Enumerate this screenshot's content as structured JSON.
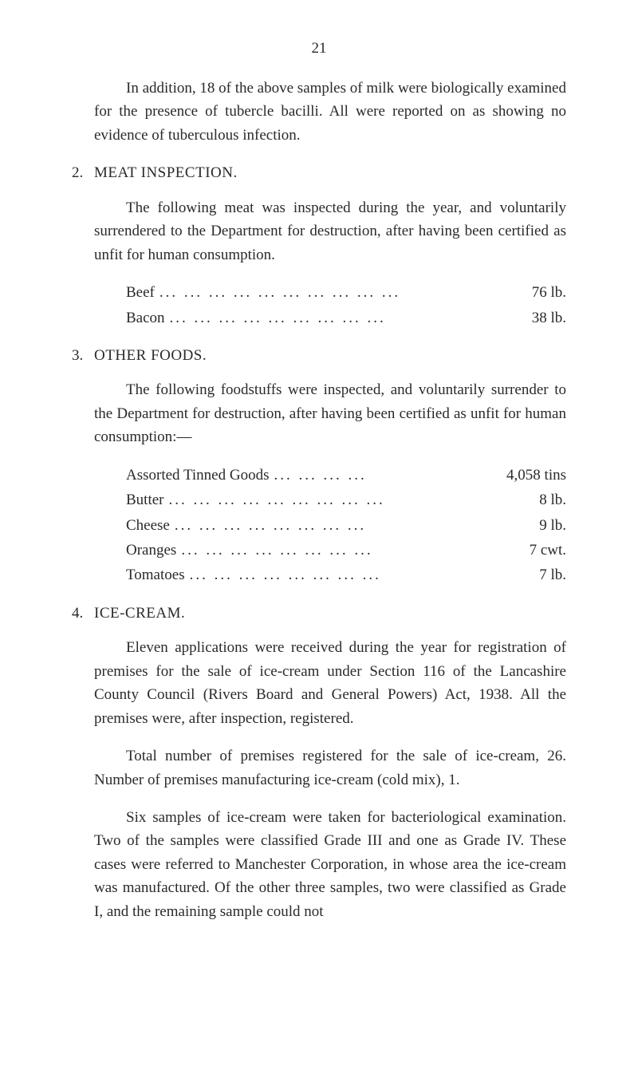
{
  "page_number": "21",
  "intro_paragraph": "In addition, 18 of the above samples of milk were biologically examined for the presence of tubercle bacilli. All were reported on as showing no evidence of tuberculous infection.",
  "section2": {
    "num": "2.",
    "title": "MEAT INSPECTION.",
    "paragraph": "The following meat was inspected during the year, and voluntarily surrendered to the Department for destruction, after having been certified as unfit for human consumption.",
    "items": [
      {
        "label": "Beef",
        "dots": "... ... ... ... ... ... ... ... ... ...",
        "value": "76 lb."
      },
      {
        "label": "Bacon",
        "dots": "... ... ... ... ... ... ... ... ...",
        "value": "38 lb."
      }
    ]
  },
  "section3": {
    "num": "3.",
    "title": "OTHER FOODS.",
    "paragraph": "The following foodstuffs were inspected, and voluntarily surrender to the Department for destruction, after having been certified as unfit for human consumption:—",
    "items": [
      {
        "label": "Assorted Tinned Goods",
        "dots": "... ... ... ...",
        "value": "4,058 tins"
      },
      {
        "label": "Butter",
        "dots": "... ... ... ... ... ... ... ... ...",
        "value": "8 lb."
      },
      {
        "label": "Cheese",
        "dots": "... ... ... ... ... ... ... ...",
        "value": "9 lb."
      },
      {
        "label": "Oranges",
        "dots": "... ... ... ... ... ... ... ...",
        "value": "7 cwt."
      },
      {
        "label": "Tomatoes",
        "dots": "... ... ... ... ... ... ... ...",
        "value": "7 lb."
      }
    ]
  },
  "section4": {
    "num": "4.",
    "title": "ICE-CREAM.",
    "paragraphs": [
      "Eleven applications were received during the year for registration of premises for the sale of ice-cream under Section 116 of the Lancashire County Council (Rivers Board and General Powers) Act, 1938. All the premises were, after inspection, registered.",
      "Total number of premises registered for the sale of ice-cream, 26. Number of premises manufacturing ice-cream (cold mix), 1.",
      "Six samples of ice-cream were taken for bacteriological examination. Two of the samples were classified Grade III and one as Grade IV. These cases were referred to Manchester Corporation, in whose area the ice-cream was manufactured. Of the other three samples, two were classified as Grade I, and the remaining sample could not"
    ]
  },
  "colors": {
    "background": "#ffffff",
    "text": "#2a2a2a"
  },
  "typography": {
    "font_family": "Georgia, Times New Roman, serif",
    "body_fontsize": 19,
    "line_height": 1.55
  }
}
